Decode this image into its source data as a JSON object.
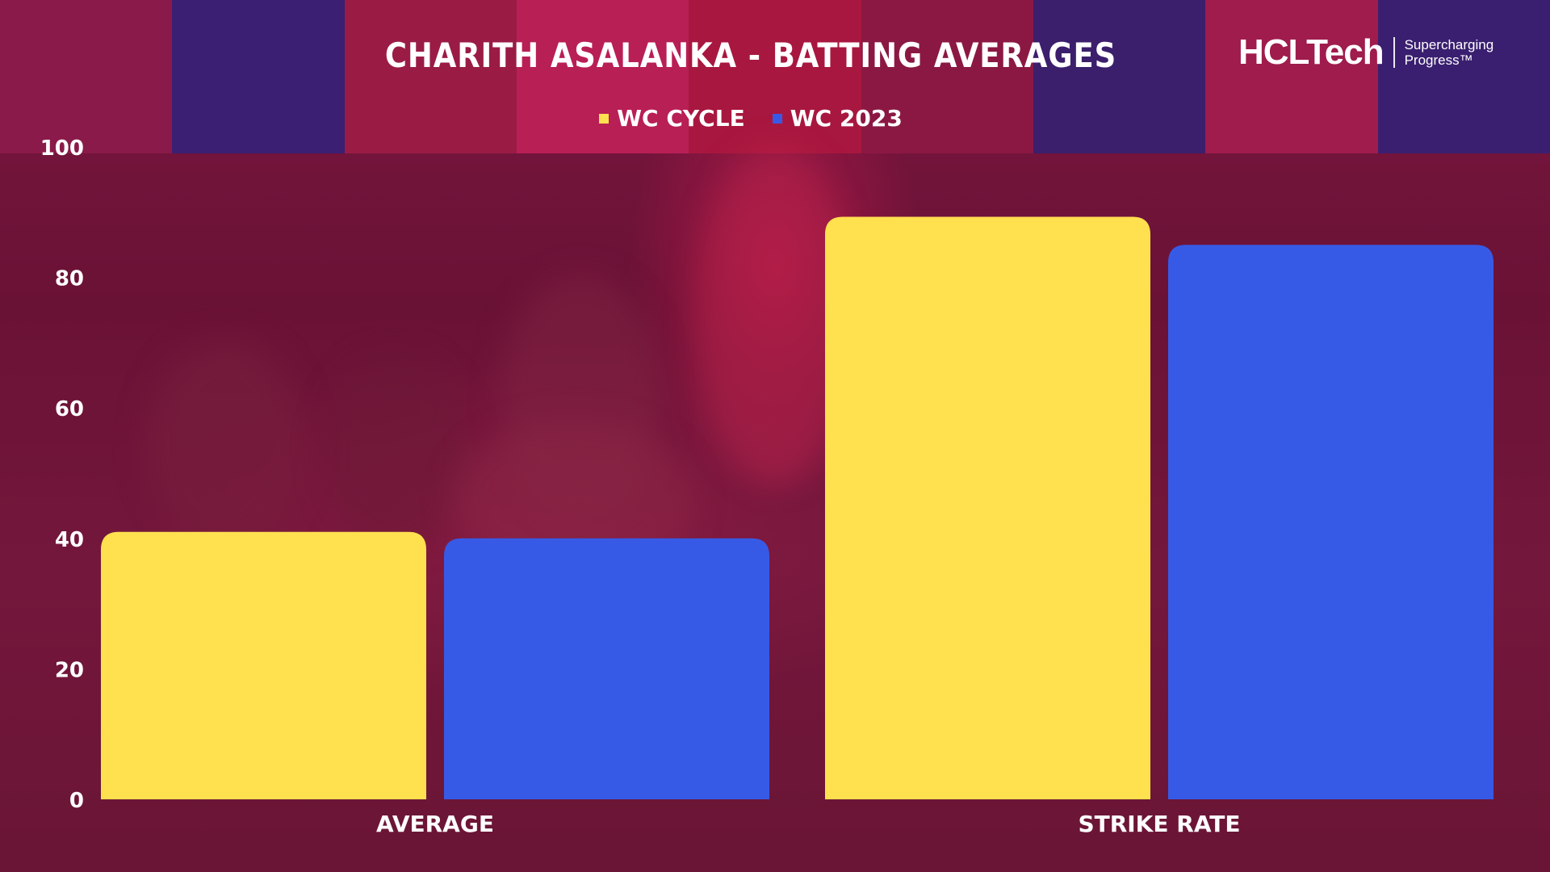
{
  "header": {
    "title": "CHARITH ASALANKA - BATTING AVERAGES"
  },
  "logo": {
    "brand": "HCLTech",
    "tagline_line1": "Supercharging",
    "tagline_line2": "Progress™"
  },
  "legend": {
    "items": [
      {
        "label": "WC CYCLE",
        "color": "#ffe04f"
      },
      {
        "label": "WC 2023",
        "color": "#375ae6"
      }
    ]
  },
  "chart_data": {
    "type": "bar",
    "title": "CHARITH ASALANKA - BATTING AVERAGES",
    "categories": [
      "AVERAGE",
      "STRIKE RATE"
    ],
    "series": [
      {
        "name": "WC CYCLE",
        "color": "#ffe04f",
        "values": [
          41,
          89.3
        ]
      },
      {
        "name": "WC 2023",
        "color": "#375ae6",
        "values": [
          40,
          85
        ]
      }
    ],
    "ylim": [
      0,
      100
    ],
    "yticks": [
      0,
      20,
      40,
      60,
      80,
      100
    ],
    "grid": false,
    "legend_position": "top-center"
  }
}
